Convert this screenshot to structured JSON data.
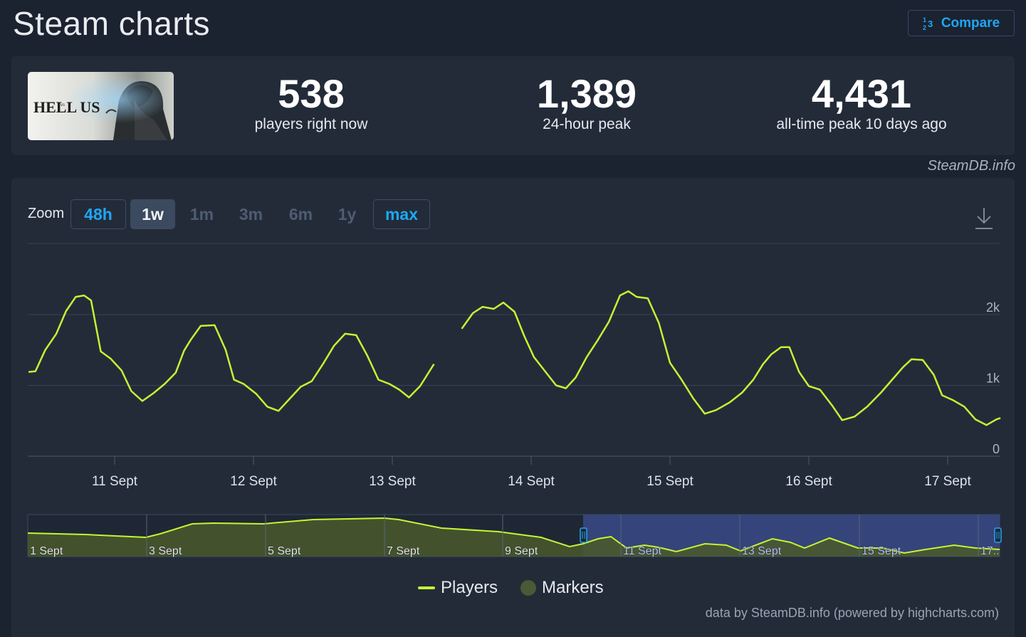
{
  "header": {
    "title": "Steam charts",
    "compare_label": "Compare",
    "compare_icon": "numbered-list-icon"
  },
  "game": {
    "logo_text": "HELL US",
    "logo_subtext": "vs"
  },
  "stats": [
    {
      "value": "538",
      "label": "players right now"
    },
    {
      "value": "1,389",
      "label": "24-hour peak"
    },
    {
      "value": "4,431",
      "label": "all-time peak 10 days ago"
    }
  ],
  "source": "SteamDB.info",
  "zoom": {
    "label": "Zoom",
    "options": [
      "48h",
      "1w",
      "1m",
      "3m",
      "6m",
      "1y",
      "max"
    ],
    "selected": "1w"
  },
  "legend": {
    "players": "Players",
    "markers": "Markers"
  },
  "credits": "data by SteamDB.info (powered by highcharts.com)",
  "colors": {
    "accent": "#1ea7f4",
    "series": "#c3f534",
    "background": "#1b2230",
    "panel": "#232b39"
  },
  "chart_data": {
    "type": "line",
    "x_unit": "day of September (hour fraction)",
    "ylim": [
      0,
      3000
    ],
    "y_ticks": [
      {
        "value": 0,
        "label": "0"
      },
      {
        "value": 1000,
        "label": "1k"
      },
      {
        "value": 2000,
        "label": "2k"
      }
    ],
    "x_ticks": [
      {
        "x": 11,
        "label": "11 Sept"
      },
      {
        "x": 12,
        "label": "12 Sept"
      },
      {
        "x": 13,
        "label": "13 Sept"
      },
      {
        "x": 14,
        "label": "14 Sept"
      },
      {
        "x": 15,
        "label": "15 Sept"
      },
      {
        "x": 16,
        "label": "16 Sept"
      },
      {
        "x": 17,
        "label": "17 Sept"
      }
    ],
    "series": [
      {
        "name": "Players",
        "segments": [
          [
            [
              10.38,
              1190
            ],
            [
              10.43,
              1200
            ],
            [
              10.5,
              1500
            ],
            [
              10.58,
              1730
            ],
            [
              10.65,
              2050
            ],
            [
              10.72,
              2250
            ],
            [
              10.78,
              2270
            ],
            [
              10.83,
              2200
            ],
            [
              10.9,
              1480
            ],
            [
              10.97,
              1380
            ],
            [
              11.05,
              1210
            ],
            [
              11.12,
              920
            ],
            [
              11.2,
              780
            ],
            [
              11.28,
              890
            ],
            [
              11.36,
              1020
            ],
            [
              11.44,
              1180
            ],
            [
              11.5,
              1490
            ],
            [
              11.55,
              1650
            ],
            [
              11.62,
              1840
            ],
            [
              11.72,
              1850
            ],
            [
              11.8,
              1500
            ],
            [
              11.86,
              1080
            ],
            [
              11.93,
              1020
            ],
            [
              12.02,
              880
            ],
            [
              12.1,
              700
            ],
            [
              12.18,
              640
            ],
            [
              12.26,
              810
            ],
            [
              12.34,
              980
            ],
            [
              12.42,
              1060
            ],
            [
              12.5,
              1300
            ],
            [
              12.58,
              1560
            ],
            [
              12.66,
              1730
            ],
            [
              12.74,
              1710
            ],
            [
              12.82,
              1420
            ],
            [
              12.9,
              1080
            ],
            [
              12.98,
              1020
            ],
            [
              13.05,
              940
            ],
            [
              13.12,
              830
            ],
            [
              13.2,
              990
            ],
            [
              13.3,
              1300
            ]
          ],
          [
            [
              13.5,
              1800
            ],
            [
              13.58,
              2020
            ],
            [
              13.65,
              2110
            ],
            [
              13.73,
              2080
            ],
            [
              13.8,
              2170
            ],
            [
              13.88,
              2040
            ],
            [
              13.95,
              1700
            ],
            [
              14.02,
              1400
            ],
            [
              14.1,
              1200
            ],
            [
              14.18,
              1000
            ],
            [
              14.25,
              960
            ],
            [
              14.32,
              1110
            ],
            [
              14.4,
              1400
            ],
            [
              14.48,
              1640
            ],
            [
              14.56,
              1900
            ],
            [
              14.64,
              2270
            ],
            [
              14.7,
              2330
            ],
            [
              14.76,
              2250
            ],
            [
              14.84,
              2230
            ],
            [
              14.92,
              1880
            ],
            [
              15.0,
              1320
            ],
            [
              15.08,
              1090
            ],
            [
              15.17,
              810
            ],
            [
              15.25,
              600
            ],
            [
              15.33,
              650
            ],
            [
              15.43,
              760
            ],
            [
              15.52,
              900
            ],
            [
              15.6,
              1080
            ],
            [
              15.67,
              1300
            ],
            [
              15.73,
              1440
            ],
            [
              15.8,
              1540
            ],
            [
              15.86,
              1540
            ],
            [
              15.93,
              1190
            ],
            [
              16.0,
              990
            ],
            [
              16.08,
              940
            ],
            [
              16.17,
              710
            ],
            [
              16.24,
              510
            ],
            [
              16.33,
              560
            ],
            [
              16.42,
              700
            ],
            [
              16.52,
              900
            ],
            [
              16.6,
              1080
            ],
            [
              16.68,
              1260
            ],
            [
              16.74,
              1370
            ],
            [
              16.82,
              1360
            ],
            [
              16.9,
              1150
            ],
            [
              16.96,
              860
            ],
            [
              17.04,
              790
            ],
            [
              17.12,
              700
            ],
            [
              17.2,
              520
            ],
            [
              17.28,
              440
            ],
            [
              17.35,
              520
            ],
            [
              17.38,
              540
            ]
          ]
        ]
      }
    ],
    "navigator": {
      "x_ticks": [
        "1 Sept",
        "3 Sept",
        "5 Sept",
        "7 Sept",
        "9 Sept",
        "11 Sept",
        "13 Sept",
        "15 Sept",
        "17.."
      ],
      "selection_start": "10 Sept",
      "selection_end": "17 Sept"
    }
  }
}
